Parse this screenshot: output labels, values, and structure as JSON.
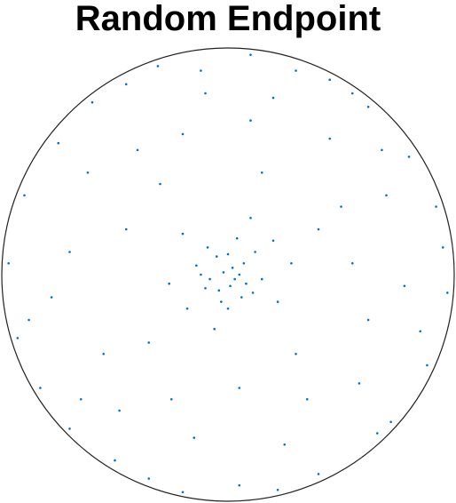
{
  "chart_data": {
    "type": "scatter",
    "title": "Random Endpoint",
    "color": "#0072bd",
    "xlim": [
      -1,
      1
    ],
    "ylim": [
      -1,
      1
    ],
    "x": [
      0.95,
      0.88,
      0.62,
      -0.31,
      -0.9,
      -0.83,
      -0.2,
      0.4,
      0.72,
      0.97,
      0.55,
      0.1,
      -0.6,
      -0.97,
      -0.7,
      0.05,
      0.8,
      -0.45,
      0.3,
      -0.88,
      0.66,
      0.92,
      -0.12,
      -0.75,
      -0.5,
      0.22,
      0.85,
      0.45,
      -0.93,
      -0.35,
      0.5,
      -0.4,
      0.62,
      -0.7,
      0.1,
      -0.15,
      0.35,
      -0.55,
      0.7,
      -0.3,
      0.45,
      -0.62,
      0.25,
      -0.48,
      0.78,
      -0.78,
      0.05,
      0.4,
      -0.2,
      0.58,
      0.15,
      -0.45,
      0.3,
      -0.35,
      0.55,
      -0.1,
      0.68,
      -0.65,
      0.2,
      -0.25,
      0.02,
      -0.05,
      0.08,
      -0.1,
      0.12,
      -0.03,
      0.15,
      -0.14,
      0.04,
      0.06,
      -0.08,
      0.01,
      0.2,
      -0.18,
      0.22,
      -0.2,
      0.1,
      -0.06,
      0.28,
      -0.26,
      0.0,
      0.03,
      -0.02,
      0.07,
      -0.04,
      0.11,
      -0.09,
      0.05,
      -0.12,
      0.0
    ],
    "values": [
      0.12,
      -0.4,
      0.74,
      0.92,
      0.35,
      -0.5,
      -0.96,
      -0.88,
      -0.65,
      -0.08,
      0.8,
      0.97,
      0.76,
      0.05,
      -0.68,
      -0.93,
      0.52,
      0.84,
      0.9,
      -0.2,
      -0.7,
      0.3,
      0.9,
      0.58,
      -0.82,
      -0.95,
      -0.25,
      0.86,
      -0.28,
      -0.9,
      0.3,
      0.55,
      -0.2,
      0.1,
      0.68,
      -0.72,
      -0.55,
      -0.35,
      0.35,
      0.4,
      0.6,
      0.45,
      -0.75,
      -0.6,
      -0.05,
      -0.1,
      -0.5,
      0.2,
      0.62,
      -0.48,
      0.45,
      0.2,
      -0.35,
      -0.3,
      0.05,
      0.8,
      0.55,
      -0.55,
      0.78,
      -0.55,
      0.03,
      0.08,
      -0.04,
      -0.06,
      0.1,
      -0.12,
      -0.02,
      0.04,
      0.16,
      -0.1,
      -0.02,
      -0.05,
      0.15,
      -0.15,
      -0.12,
      0.18,
      0.25,
      -0.24,
      0.05,
      -0.04,
      0.09,
      -0.02,
      0.01,
      0.05,
      -0.07,
      -0.08,
      0.12,
      0.0,
      0.0,
      -0.15
    ]
  }
}
